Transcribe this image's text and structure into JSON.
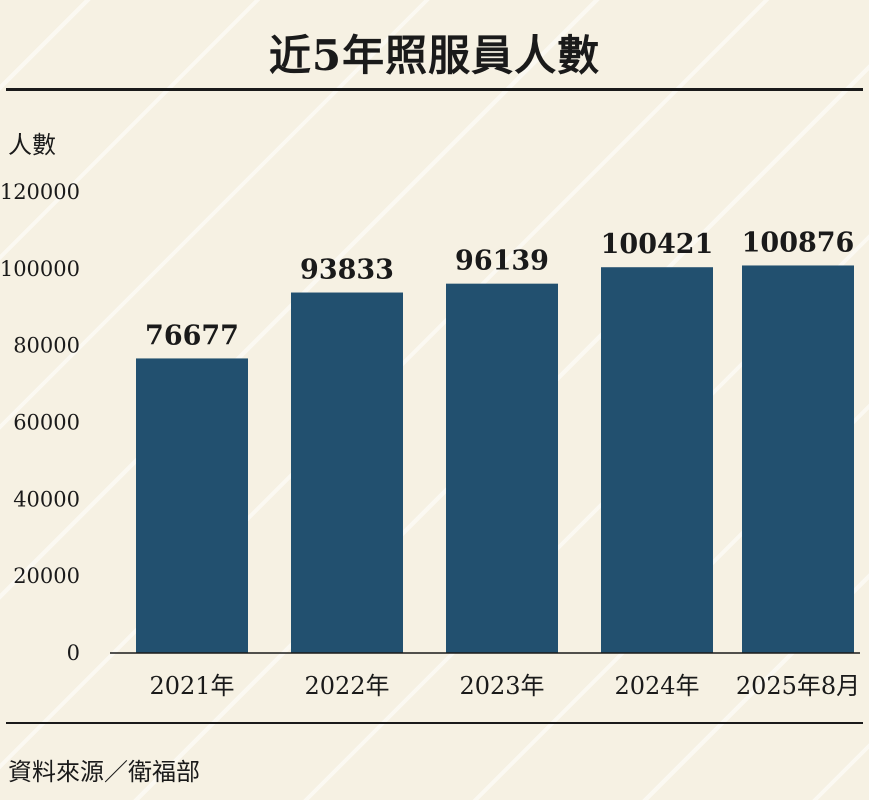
{
  "title": "近5年照服員人數",
  "source": "資料來源／衛福部",
  "colors": {
    "bar": "#22506f",
    "axis": "#1a1a1a",
    "background": "#f6f1e3"
  },
  "chart_data": {
    "type": "bar",
    "title": "近5年照服員人數",
    "ylabel": "人數",
    "xlabel": "",
    "categories": [
      "2021年",
      "2022年",
      "2023年",
      "2024年",
      "2025年8月"
    ],
    "values": [
      76677,
      93833,
      96139,
      100421,
      100876
    ],
    "value_labels": [
      "76677",
      "93833",
      "96139",
      "100421",
      "100876"
    ],
    "ylim": [
      0,
      120000
    ],
    "yticks": [
      0,
      20000,
      40000,
      60000,
      80000,
      100000,
      120000
    ],
    "ytick_labels": [
      "0",
      "20000",
      "40000",
      "60000",
      "80000",
      "100000",
      "120000"
    ],
    "grid": false,
    "legend": "none"
  }
}
